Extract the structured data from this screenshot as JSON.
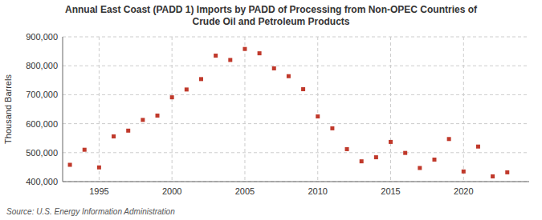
{
  "chart_data": {
    "type": "scatter",
    "title": "Annual East Coast (PADD 1) Imports by PADD of Processing from Non-OPEC Countries of\nCrude Oil and Petroleum Products",
    "ylabel": "Thousand Barrels",
    "source": "Source: U.S. Energy Information Administration",
    "x": [
      1993,
      1994,
      1995,
      1996,
      1997,
      1998,
      1999,
      2000,
      2001,
      2002,
      2003,
      2004,
      2005,
      2006,
      2007,
      2008,
      2009,
      2010,
      2011,
      2012,
      2013,
      2014,
      2015,
      2016,
      2017,
      2018,
      2019,
      2020,
      2021,
      2022,
      2023
    ],
    "values": [
      458000,
      510000,
      449000,
      556000,
      576000,
      613000,
      628000,
      691000,
      718000,
      754000,
      835000,
      820000,
      858000,
      843000,
      791000,
      764000,
      719000,
      625000,
      584000,
      512000,
      470000,
      484000,
      537000,
      499000,
      447000,
      476000,
      547000,
      435000,
      521000,
      418000,
      432000
    ],
    "color": "#c0392b",
    "marker": "square",
    "xlim": [
      1992.5,
      2024.5
    ],
    "xticks": [
      1995,
      2000,
      2005,
      2010,
      2015,
      2020
    ],
    "ylim": [
      400000,
      900000
    ],
    "yticks": [
      {
        "value": 400000,
        "label": "400,000"
      },
      {
        "value": 500000,
        "label": "500,000"
      },
      {
        "value": 600000,
        "label": "600,000"
      },
      {
        "value": 700000,
        "label": "700,000"
      },
      {
        "value": 800000,
        "label": "800,000"
      },
      {
        "value": 900000,
        "label": "900,000"
      }
    ],
    "grid": true
  }
}
